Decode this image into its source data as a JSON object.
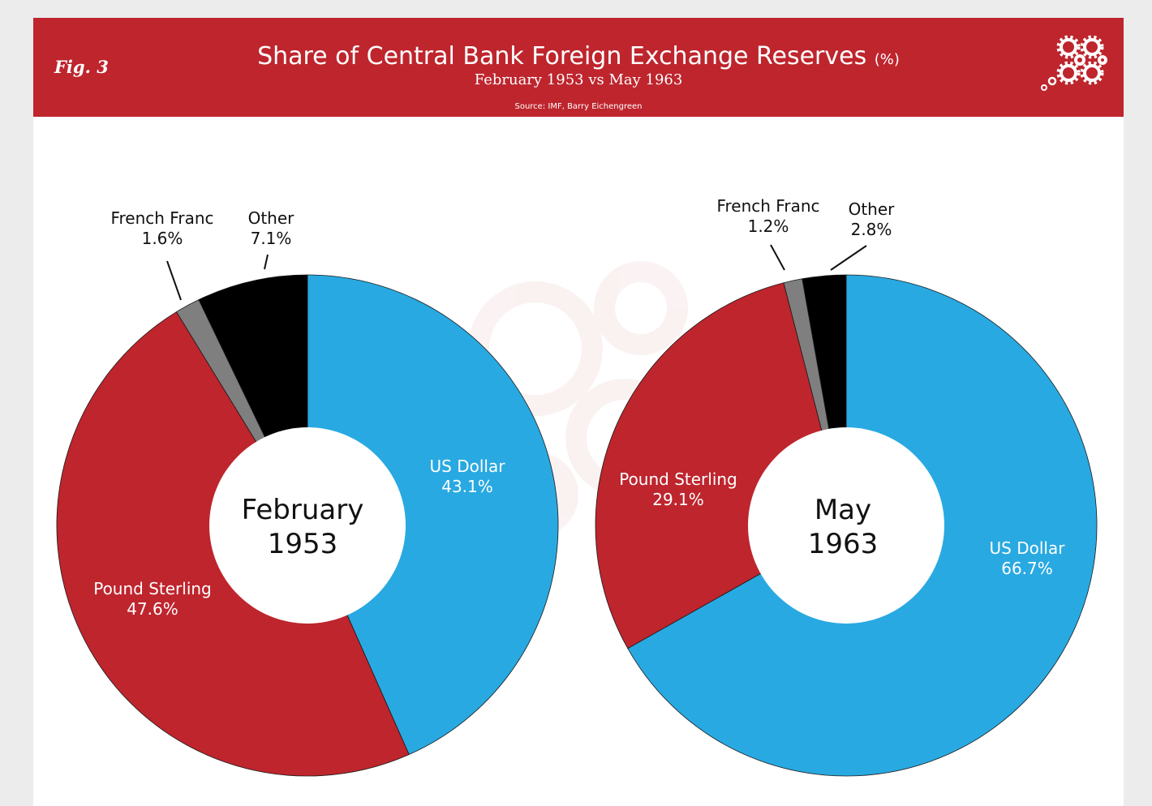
{
  "header": {
    "fig_label": "Fig. 3",
    "title": "Share of Central Bank Foreign Exchange Reserves",
    "title_unit": "(%)",
    "subtitle": "February 1953 vs May 1963",
    "source": "Source: IMF, Barry Eichengreen",
    "banner_color": "#be252d",
    "logo_icon": "gears-icon"
  },
  "colors": {
    "us_dollar": "#29a9e1",
    "pound_sterling": "#be252d",
    "french_franc": "#7f7f7f",
    "other": "#000000"
  },
  "chart_data": [
    {
      "type": "pie",
      "title": "",
      "center_label_line1": "February",
      "center_label_line2": "1953",
      "slices": [
        {
          "label": "US Dollar",
          "value": 43.1,
          "display": "43.1%",
          "color": "#29a9e1"
        },
        {
          "label": "Pound Sterling",
          "value": 47.6,
          "display": "47.6%",
          "color": "#be252d"
        },
        {
          "label": "French Franc",
          "value": 1.6,
          "display": "1.6%",
          "color": "#7f7f7f"
        },
        {
          "label": "Other",
          "value": 7.1,
          "display": "7.1%",
          "color": "#000000"
        }
      ]
    },
    {
      "type": "pie",
      "title": "",
      "center_label_line1": "May",
      "center_label_line2": "1963",
      "slices": [
        {
          "label": "US Dollar",
          "value": 66.7,
          "display": "66.7%",
          "color": "#29a9e1"
        },
        {
          "label": "Pound Sterling",
          "value": 29.1,
          "display": "29.1%",
          "color": "#be252d"
        },
        {
          "label": "French Franc",
          "value": 1.2,
          "display": "1.2%",
          "color": "#7f7f7f"
        },
        {
          "label": "Other",
          "value": 2.8,
          "display": "2.8%",
          "color": "#000000"
        }
      ]
    }
  ]
}
